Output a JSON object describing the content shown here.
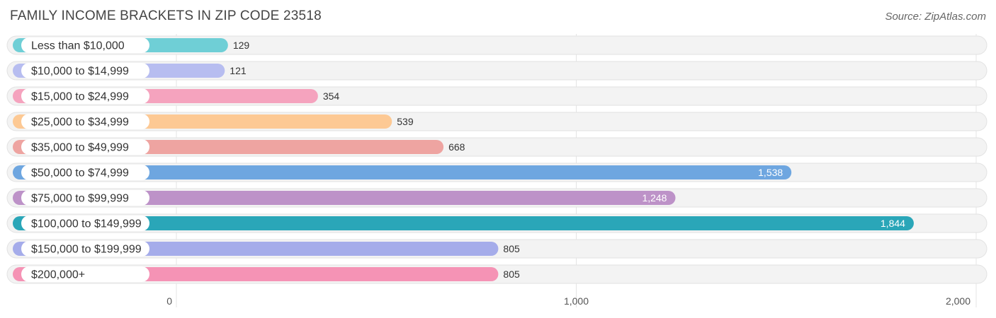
{
  "header": {
    "title": "FAMILY INCOME BRACKETS IN ZIP CODE 23518",
    "source": "Source: ZipAtlas.com"
  },
  "chart_data": {
    "type": "bar",
    "orientation": "horizontal",
    "title": "FAMILY INCOME BRACKETS IN ZIP CODE 23518",
    "categories": [
      "Less than $10,000",
      "$10,000 to $14,999",
      "$15,000 to $24,999",
      "$25,000 to $34,999",
      "$35,000 to $49,999",
      "$50,000 to $74,999",
      "$75,000 to $99,999",
      "$100,000 to $149,999",
      "$150,000 to $199,999",
      "$200,000+"
    ],
    "values": [
      129,
      121,
      354,
      539,
      668,
      1538,
      1248,
      1844,
      805,
      805
    ],
    "value_labels": [
      "129",
      "121",
      "354",
      "539",
      "668",
      "1,538",
      "1,248",
      "1,844",
      "805",
      "805"
    ],
    "colors": [
      "#6fcfd6",
      "#b7bdf0",
      "#f5a3be",
      "#fdc994",
      "#eea4a1",
      "#6ea6e0",
      "#bd92c8",
      "#2aa6b8",
      "#a5acea",
      "#f593b5"
    ],
    "xlim": [
      0,
      2000
    ],
    "ticks": [
      0,
      1000,
      2000
    ],
    "tick_labels": [
      "0",
      "1,000",
      "2,000"
    ],
    "grid": true
  }
}
